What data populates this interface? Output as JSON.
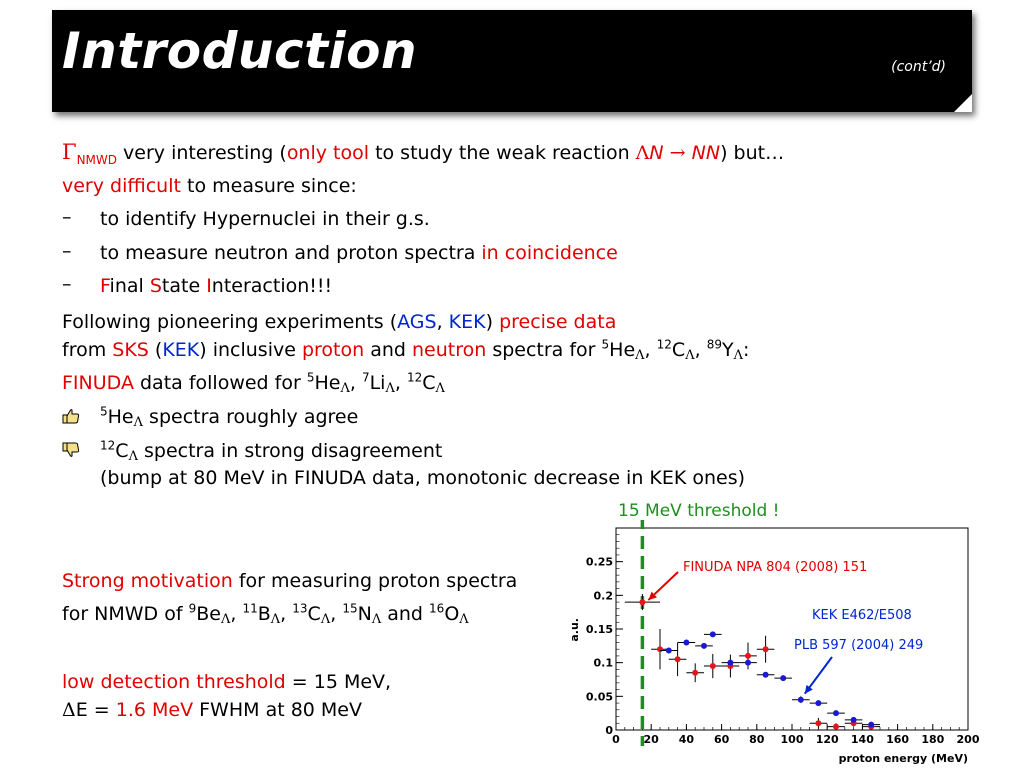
{
  "header": {
    "title": "Introduction",
    "subtitle": "(cont’d)"
  },
  "line1": {
    "gamma": "Γ",
    "nmwd": "NMWD",
    "a": " very interesting (",
    "only_tool": "only tool",
    "b": " to study the weak reaction ",
    "lam": "Λ",
    "N1": "N",
    "arrow": " → ",
    "NN": "NN",
    "c": ") but…"
  },
  "line2": {
    "very_difficult": "very difficult",
    "rest": " to measure since:"
  },
  "bullets": [
    {
      "dash": "–",
      "text": "to identify Hypernuclei in their g.s."
    },
    {
      "dash": "–",
      "text_a": "to measure neutron and proton spectra ",
      "text_b": "in coincidence"
    },
    {
      "dash": "–",
      "F": "F",
      "inal": "inal ",
      "S": "S",
      "tate": "tate ",
      "I": "I",
      "nteraction": "nteraction!!!"
    }
  ],
  "following": {
    "a": "Following pioneering experiments (",
    "ags": "AGS",
    "comma": ", ",
    "kek": "KEK",
    "b": ") ",
    "precise": "precise data"
  },
  "from": {
    "a": "from ",
    "sks": "SKS",
    "b": " (",
    "kek": "KEK",
    "c": ") inclusive ",
    "proton": "proton",
    "d": " and ",
    "neutron": "neutron",
    "e": " spectra for ",
    "sup5": "5",
    "he": "He",
    "lam": "Λ",
    "f": ", ",
    "sup12": "12",
    "c_el": "C",
    "g": ", ",
    "sup89": "89",
    "y": "Y",
    "h": ":"
  },
  "finuda": {
    "finuda": "FINUDA",
    "a": " data followed for ",
    "sup5": "5",
    "he": "He",
    "lam": "Λ",
    "b": ", ",
    "sup7": "7",
    "li": "Li",
    "c": ", ",
    "sup12": "12",
    "c_el": "C"
  },
  "agree": {
    "sup5": "5",
    "he": "He",
    "lam": "Λ",
    "rest": " spectra roughly agree"
  },
  "disagree": {
    "sup12": "12",
    "c_el": "C",
    "lam": "Λ",
    "rest": " spectra in strong disagreement",
    "line2": "(bump at 80 MeV in FINUDA data,  monotonic decrease in KEK ones)"
  },
  "threshold_note": "15 MeV threshold !",
  "motivation": {
    "strong": "Strong motivation",
    "rest": " for measuring proton spectra"
  },
  "nmwd_line": {
    "a": "for NMWD of ",
    "s9": "9",
    "be": "Be",
    "lam": "Λ",
    "c1": ", ",
    "s11": "11",
    "b_el": "B",
    "c2": ", ",
    "s13": "13",
    "c_el": "C",
    "c3": ", ",
    "s15": "15",
    "n_el": "N",
    "c4": " and ",
    "s16": "16",
    "o_el": "O"
  },
  "low_threshold": {
    "red": "low detection threshold",
    "rest": " = 15 MeV,"
  },
  "delta": {
    "d": "Δ",
    "e": "E = ",
    "val": "1.6 MeV",
    "rest": " FWHM at 80 MeV"
  },
  "colors": {
    "red": "#e00000",
    "blue": "#0026ce",
    "green": "#1e8f1e",
    "finuda_points": "#e8141c",
    "kek_points": "#1a1ad6"
  },
  "icons": {
    "agree": "thumbs-up-icon",
    "disagree": "thumbs-down-icon"
  },
  "chart_data": {
    "type": "scatter",
    "title": "",
    "xlabel": "proton energy (MeV)",
    "ylabel": "a.u.",
    "xlim": [
      0,
      200
    ],
    "ylim": [
      0,
      0.3
    ],
    "xticks": [
      "0",
      "20",
      "40",
      "60",
      "80",
      "100",
      "120",
      "140",
      "160",
      "180",
      "200"
    ],
    "yticks": [
      "0",
      "0.05",
      "0.1",
      "0.15",
      "0.2",
      "0.25"
    ],
    "threshold_x": 15,
    "series": [
      {
        "name": "FINUDA",
        "color": "#e8141c",
        "points": [
          [
            15,
            0.19
          ],
          [
            25,
            0.12
          ],
          [
            35,
            0.105
          ],
          [
            45,
            0.085
          ],
          [
            55,
            0.095
          ],
          [
            65,
            0.095
          ],
          [
            75,
            0.11
          ],
          [
            85,
            0.12
          ],
          [
            115,
            0.01
          ],
          [
            125,
            0.005
          ],
          [
            135,
            0.01
          ],
          [
            145,
            0.005
          ]
        ],
        "errors": [
          [
            10,
            0.012
          ],
          [
            5,
            0.03
          ],
          [
            5,
            0.025
          ],
          [
            5,
            0.014
          ],
          [
            5,
            0.018
          ],
          [
            5,
            0.017
          ],
          [
            5,
            0.02
          ],
          [
            5,
            0.02
          ],
          [
            5,
            0.008
          ],
          [
            5,
            0.005
          ],
          [
            5,
            0.005
          ],
          [
            5,
            0.004
          ]
        ]
      },
      {
        "name": "KEK",
        "color": "#1a1ad6",
        "points": [
          [
            30,
            0.118
          ],
          [
            40,
            0.13
          ],
          [
            50,
            0.125
          ],
          [
            55,
            0.142
          ],
          [
            65,
            0.1
          ],
          [
            75,
            0.1
          ],
          [
            85,
            0.082
          ],
          [
            95,
            0.077
          ],
          [
            105,
            0.045
          ],
          [
            115,
            0.04
          ],
          [
            125,
            0.025
          ],
          [
            135,
            0.015
          ],
          [
            145,
            0.008
          ]
        ],
        "errors": [
          [
            5,
            0.003
          ],
          [
            5,
            0.003
          ],
          [
            5,
            0.003
          ],
          [
            5,
            0.003
          ],
          [
            5,
            0.003
          ],
          [
            5,
            0.003
          ],
          [
            5,
            0.003
          ],
          [
            5,
            0.003
          ],
          [
            5,
            0.005
          ],
          [
            5,
            0.003
          ],
          [
            5,
            0.003
          ],
          [
            5,
            0.003
          ],
          [
            5,
            0.003
          ]
        ]
      }
    ],
    "annotations": {
      "finuda_ref": "FINUDA   NPA 804 (2008) 151",
      "kek_ref": "KEK E462/E508",
      "plb_ref": "PLB 597 (2004) 249"
    }
  }
}
